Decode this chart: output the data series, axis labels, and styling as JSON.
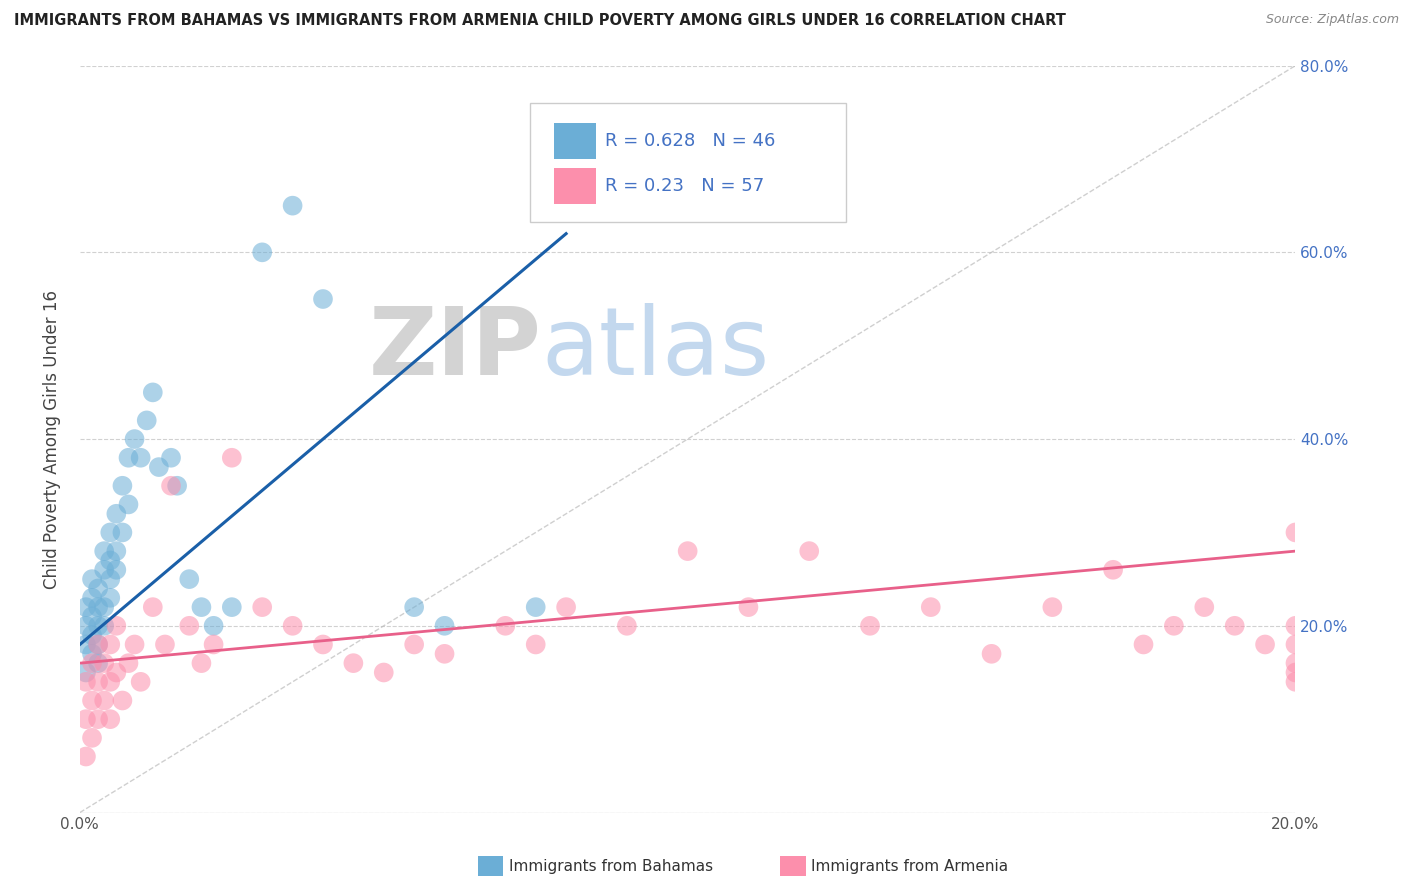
{
  "title": "IMMIGRANTS FROM BAHAMAS VS IMMIGRANTS FROM ARMENIA CHILD POVERTY AMONG GIRLS UNDER 16 CORRELATION CHART",
  "source": "Source: ZipAtlas.com",
  "ylabel": "Child Poverty Among Girls Under 16",
  "xlim": [
    0.0,
    0.2
  ],
  "ylim": [
    0.0,
    0.8
  ],
  "bahamas_color": "#6baed6",
  "armenia_color": "#fc8fac",
  "bahamas_line_color": "#1a5fa8",
  "armenia_line_color": "#e8608a",
  "bahamas_R": 0.628,
  "bahamas_N": 46,
  "armenia_R": 0.23,
  "armenia_N": 57,
  "legend_label_bahamas": "Immigrants from Bahamas",
  "legend_label_armenia": "Immigrants from Armenia",
  "watermark_zip": "ZIP",
  "watermark_atlas": "atlas",
  "background_color": "#ffffff",
  "grid_color": "#cccccc",
  "tick_color": "#4472c4",
  "bahamas_scatter_x": [
    0.001,
    0.001,
    0.001,
    0.001,
    0.002,
    0.002,
    0.002,
    0.002,
    0.002,
    0.003,
    0.003,
    0.003,
    0.003,
    0.003,
    0.004,
    0.004,
    0.004,
    0.004,
    0.005,
    0.005,
    0.005,
    0.005,
    0.006,
    0.006,
    0.006,
    0.007,
    0.007,
    0.008,
    0.008,
    0.009,
    0.01,
    0.011,
    0.012,
    0.013,
    0.015,
    0.016,
    0.018,
    0.02,
    0.022,
    0.025,
    0.03,
    0.035,
    0.04,
    0.055,
    0.06,
    0.075
  ],
  "bahamas_scatter_y": [
    0.2,
    0.18,
    0.22,
    0.15,
    0.21,
    0.19,
    0.23,
    0.17,
    0.25,
    0.2,
    0.22,
    0.18,
    0.24,
    0.16,
    0.22,
    0.2,
    0.26,
    0.28,
    0.25,
    0.23,
    0.27,
    0.3,
    0.28,
    0.32,
    0.26,
    0.3,
    0.35,
    0.33,
    0.38,
    0.4,
    0.38,
    0.42,
    0.45,
    0.37,
    0.38,
    0.35,
    0.25,
    0.22,
    0.2,
    0.22,
    0.6,
    0.65,
    0.55,
    0.22,
    0.2,
    0.22
  ],
  "armenia_scatter_x": [
    0.001,
    0.001,
    0.001,
    0.002,
    0.002,
    0.002,
    0.003,
    0.003,
    0.003,
    0.004,
    0.004,
    0.005,
    0.005,
    0.005,
    0.006,
    0.006,
    0.007,
    0.008,
    0.009,
    0.01,
    0.012,
    0.014,
    0.015,
    0.018,
    0.02,
    0.022,
    0.025,
    0.03,
    0.035,
    0.04,
    0.045,
    0.05,
    0.055,
    0.06,
    0.07,
    0.075,
    0.08,
    0.09,
    0.1,
    0.11,
    0.12,
    0.13,
    0.14,
    0.15,
    0.16,
    0.17,
    0.175,
    0.18,
    0.185,
    0.19,
    0.195,
    0.2,
    0.2,
    0.2,
    0.2,
    0.2,
    0.2
  ],
  "armenia_scatter_y": [
    0.14,
    0.1,
    0.06,
    0.12,
    0.08,
    0.16,
    0.14,
    0.1,
    0.18,
    0.12,
    0.16,
    0.14,
    0.1,
    0.18,
    0.2,
    0.15,
    0.12,
    0.16,
    0.18,
    0.14,
    0.22,
    0.18,
    0.35,
    0.2,
    0.16,
    0.18,
    0.38,
    0.22,
    0.2,
    0.18,
    0.16,
    0.15,
    0.18,
    0.17,
    0.2,
    0.18,
    0.22,
    0.2,
    0.28,
    0.22,
    0.28,
    0.2,
    0.22,
    0.17,
    0.22,
    0.26,
    0.18,
    0.2,
    0.22,
    0.2,
    0.18,
    0.15,
    0.18,
    0.2,
    0.16,
    0.14,
    0.3
  ],
  "bahamas_trend": [
    0.18,
    0.62
  ],
  "bahamas_trend_x": [
    0.0,
    0.08
  ],
  "armenia_trend": [
    0.16,
    0.28
  ],
  "armenia_trend_x": [
    0.0,
    0.2
  ]
}
